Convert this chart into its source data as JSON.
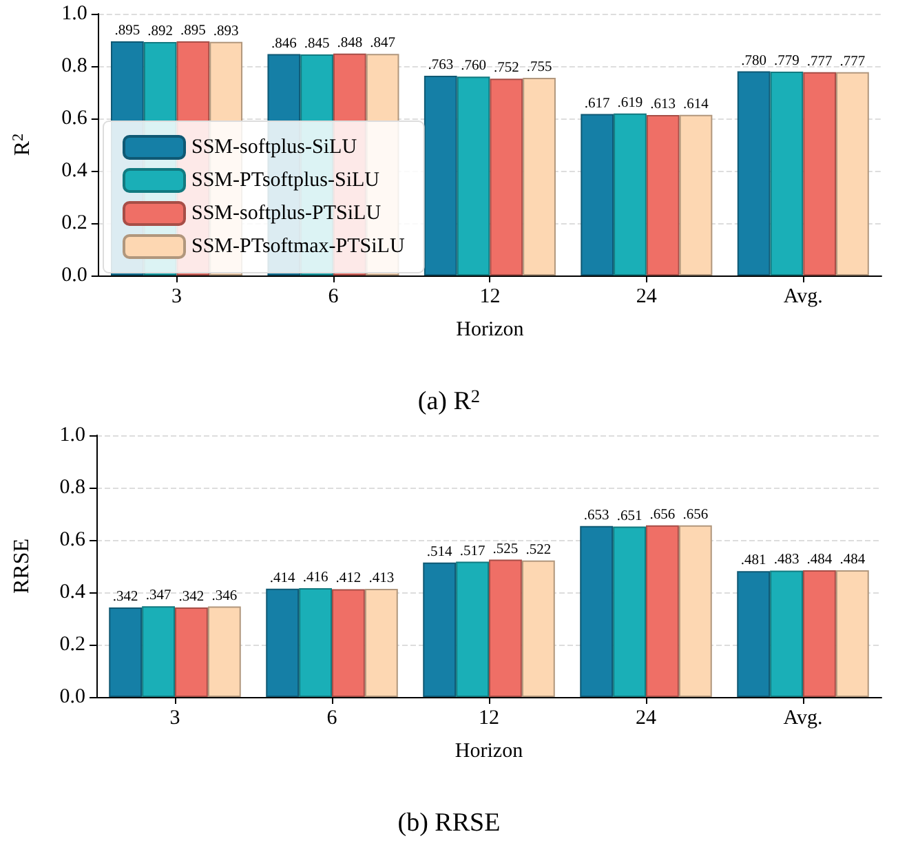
{
  "chart_data": [
    {
      "type": "bar",
      "title": "(a) R$^{2}$",
      "xlabel": "Horizon",
      "ylabel": "R$^{2}$",
      "categories": [
        "3",
        "6",
        "12",
        "24",
        "Avg."
      ],
      "ylim": [
        0,
        1
      ],
      "yticks": [
        {
          "value": 0,
          "label": "0.0"
        },
        {
          "value": 0.2,
          "label": "0.2"
        },
        {
          "value": 0.4,
          "label": "0.4"
        },
        {
          "value": 0.6,
          "label": "0.6"
        },
        {
          "value": 0.8,
          "label": "0.8"
        },
        {
          "value": 1,
          "label": "1.0"
        }
      ],
      "grid": "y",
      "legend": "left",
      "series": [
        {
          "name": "SSM-softplus-SiLU",
          "color": "#157fa6",
          "values": [
            0.895,
            0.846,
            0.763,
            0.617,
            0.78
          ],
          "value_labels": [
            ".895",
            ".846",
            ".763",
            ".617",
            ".780"
          ]
        },
        {
          "name": "SSM-PTsoftplus-SiLU",
          "color": "#1aafb7",
          "values": [
            0.892,
            0.845,
            0.76,
            0.619,
            0.779
          ],
          "value_labels": [
            ".892",
            ".845",
            ".760",
            ".619",
            ".779"
          ]
        },
        {
          "name": "SSM-softplus-PTSiLU",
          "color": "#ef6f66",
          "values": [
            0.895,
            0.848,
            0.752,
            0.613,
            0.777
          ],
          "value_labels": [
            ".895",
            ".848",
            ".752",
            ".613",
            ".777"
          ]
        },
        {
          "name": "SSM-PTsoftmax-PTSiLU",
          "color": "#fdd7b2",
          "values": [
            0.893,
            0.847,
            0.755,
            0.614,
            0.777
          ],
          "value_labels": [
            ".893",
            ".847",
            ".755",
            ".614",
            ".777"
          ]
        }
      ]
    },
    {
      "type": "bar",
      "title": "(b) RRSE",
      "xlabel": "Horizon",
      "ylabel": "RRSE",
      "categories": [
        "3",
        "6",
        "12",
        "24",
        "Avg."
      ],
      "ylim": [
        0,
        1
      ],
      "yticks": [
        {
          "value": 0,
          "label": "0.0"
        },
        {
          "value": 0.2,
          "label": "0.2"
        },
        {
          "value": 0.4,
          "label": "0.4"
        },
        {
          "value": 0.6,
          "label": "0.6"
        },
        {
          "value": 0.8,
          "label": "0.8"
        },
        {
          "value": 1,
          "label": "1.0"
        }
      ],
      "grid": "y",
      "series": [
        {
          "color": "#157fa6",
          "values": [
            0.342,
            0.414,
            0.514,
            0.653,
            0.481
          ],
          "value_labels": [
            ".342",
            ".414",
            ".514",
            ".653",
            ".481"
          ]
        },
        {
          "color": "#1aafb7",
          "values": [
            0.347,
            0.416,
            0.517,
            0.651,
            0.483
          ],
          "value_labels": [
            ".347",
            ".416",
            ".517",
            ".651",
            ".483"
          ]
        },
        {
          "color": "#ef6f66",
          "values": [
            0.342,
            0.412,
            0.525,
            0.656,
            0.484
          ],
          "value_labels": [
            ".342",
            ".412",
            ".525",
            ".656",
            ".484"
          ]
        },
        {
          "color": "#fdd7b2",
          "values": [
            0.346,
            0.413,
            0.522,
            0.656,
            0.484
          ],
          "value_labels": [
            ".346",
            ".413",
            ".522",
            ".656",
            ".484"
          ]
        }
      ]
    }
  ]
}
